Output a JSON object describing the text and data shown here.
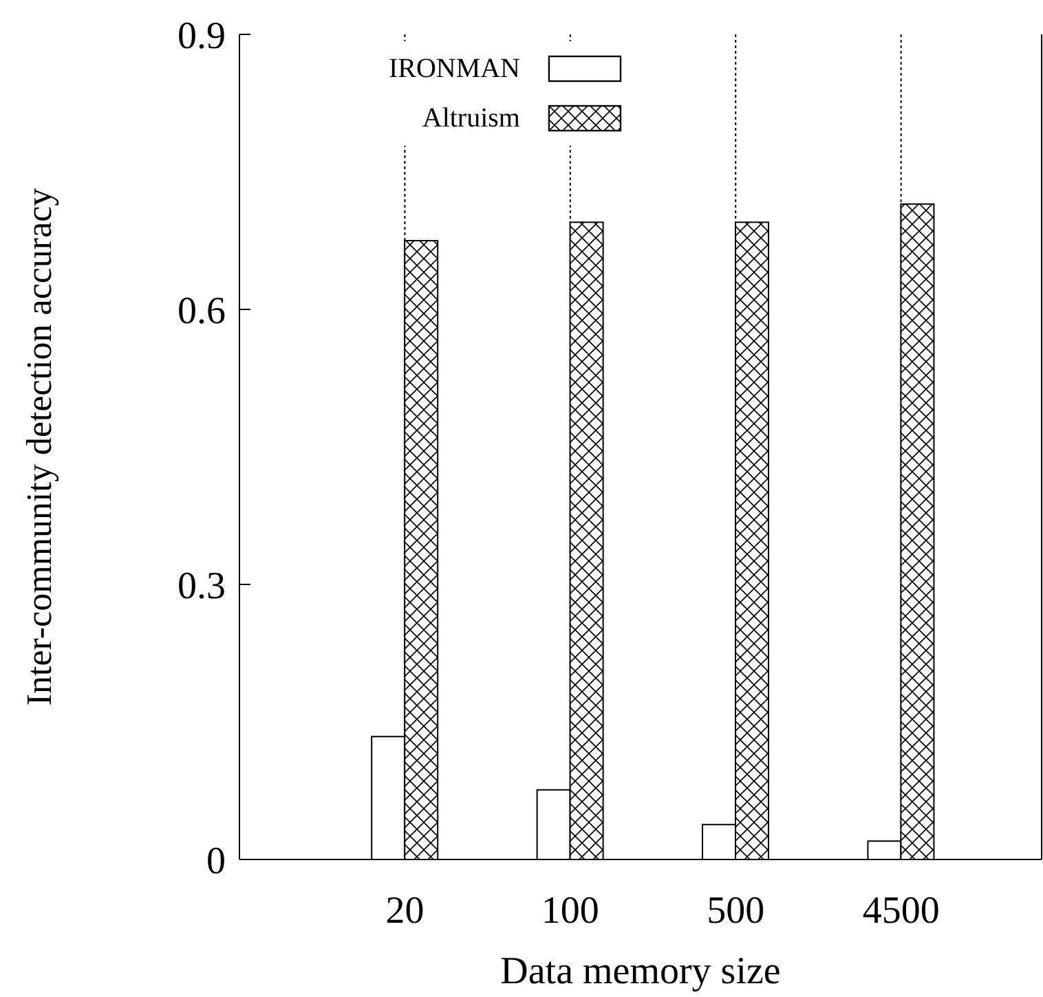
{
  "chart_data": {
    "type": "bar",
    "xlabel": "Data memory size",
    "ylabel": "Inter-community detection accuracy",
    "categories": [
      "20",
      "100",
      "500",
      "4500"
    ],
    "series": [
      {
        "name": "IRONMAN",
        "color": "#ffffff",
        "values": [
          0.134,
          0.076,
          0.038,
          0.02
        ]
      },
      {
        "name": "Altruism",
        "color": "#000000",
        "values": [
          0.675,
          0.695,
          0.695,
          0.715
        ]
      }
    ],
    "ylim": [
      0,
      0.9
    ],
    "yticks": [
      0,
      {
        "value": 0.3,
        "label": "0.3"
      },
      {
        "value": 0.6,
        "label": "0.6"
      },
      {
        "value": 0.9,
        "label": "0.9"
      }
    ],
    "grid": "x",
    "legend": "top left"
  }
}
